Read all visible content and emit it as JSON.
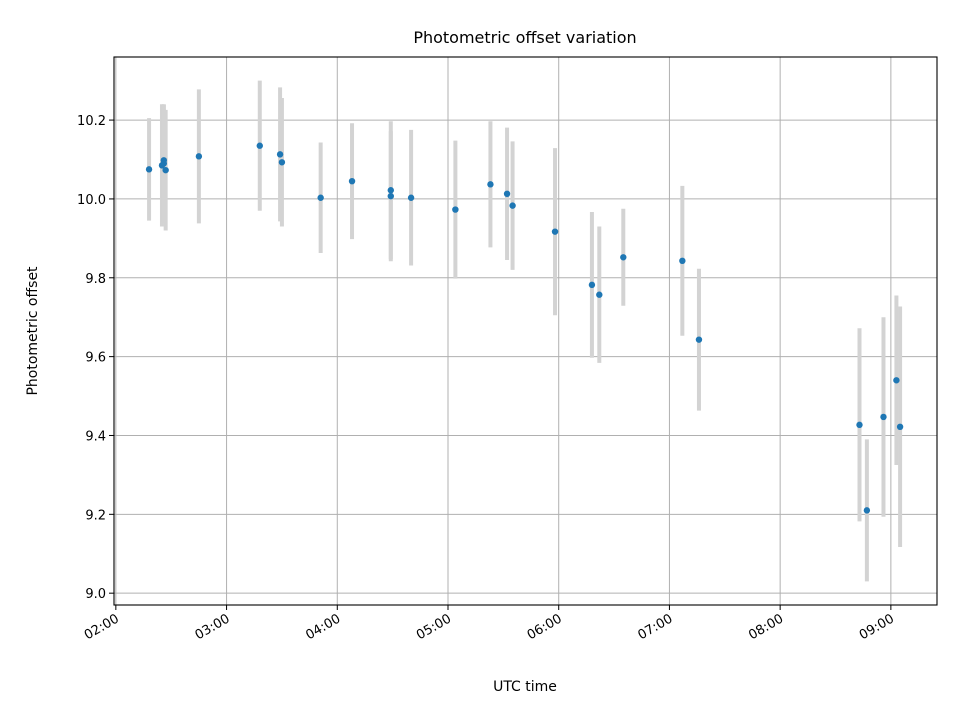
{
  "chart_data": {
    "type": "scatter",
    "title": "Photometric offset variation",
    "xlabel": "UTC time",
    "ylabel": "Photometric offset",
    "x_is_time": true,
    "xlim": [
      "01:59",
      "09:25"
    ],
    "ylim": [
      8.97,
      10.36
    ],
    "xticks": [
      "02:00",
      "03:00",
      "04:00",
      "05:00",
      "06:00",
      "07:00",
      "08:00",
      "09:00"
    ],
    "yticks": [
      9.0,
      9.2,
      9.4,
      9.6,
      9.8,
      10.0,
      10.2
    ],
    "ytick_labels": [
      "9.0",
      "9.2",
      "9.4",
      "9.6",
      "9.8",
      "10.0",
      "10.2"
    ],
    "grid": true,
    "colors": {
      "points": "#1f77b4",
      "errorbars": "#d3d3d3",
      "grid": "#b0b0b0",
      "frame": "#000000"
    },
    "series": [
      {
        "points": [
          {
            "x": "02:18",
            "y": 10.075,
            "err": 0.13
          },
          {
            "x": "02:25",
            "y": 10.085,
            "err": 0.155
          },
          {
            "x": "02:26",
            "y": 10.098,
            "err": 0.14
          },
          {
            "x": "02:26",
            "y": 10.09,
            "err": 0.15
          },
          {
            "x": "02:27",
            "y": 10.073,
            "err": 0.153
          },
          {
            "x": "02:45",
            "y": 10.108,
            "err": 0.17
          },
          {
            "x": "03:18",
            "y": 10.135,
            "err": 0.165
          },
          {
            "x": "03:29",
            "y": 10.113,
            "err": 0.17
          },
          {
            "x": "03:30",
            "y": 10.093,
            "err": 0.163
          },
          {
            "x": "03:51",
            "y": 10.003,
            "err": 0.14
          },
          {
            "x": "04:08",
            "y": 10.045,
            "err": 0.147
          },
          {
            "x": "04:29",
            "y": 10.022,
            "err": 0.175
          },
          {
            "x": "04:29",
            "y": 10.007,
            "err": 0.165
          },
          {
            "x": "04:40",
            "y": 10.003,
            "err": 0.172
          },
          {
            "x": "05:04",
            "y": 9.973,
            "err": 0.175
          },
          {
            "x": "05:23",
            "y": 10.037,
            "err": 0.16
          },
          {
            "x": "05:32",
            "y": 10.013,
            "err": 0.168
          },
          {
            "x": "05:35",
            "y": 9.983,
            "err": 0.163
          },
          {
            "x": "05:58",
            "y": 9.917,
            "err": 0.212
          },
          {
            "x": "06:18",
            "y": 9.782,
            "err": 0.185
          },
          {
            "x": "06:22",
            "y": 9.757,
            "err": 0.173
          },
          {
            "x": "06:35",
            "y": 9.852,
            "err": 0.123
          },
          {
            "x": "07:07",
            "y": 9.843,
            "err": 0.19
          },
          {
            "x": "07:16",
            "y": 9.643,
            "err": 0.18
          },
          {
            "x": "08:43",
            "y": 9.427,
            "err": 0.245
          },
          {
            "x": "08:47",
            "y": 9.21,
            "err": 0.18
          },
          {
            "x": "08:56",
            "y": 9.447,
            "err": 0.253
          },
          {
            "x": "09:03",
            "y": 9.54,
            "err": 0.215
          },
          {
            "x": "09:05",
            "y": 9.422,
            "err": 0.305
          }
        ]
      }
    ]
  }
}
